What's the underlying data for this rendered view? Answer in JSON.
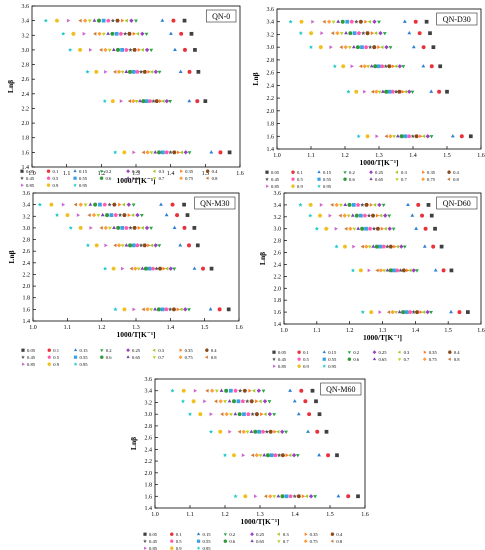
{
  "figure": {
    "series_labels": [
      "0.05",
      "0.1",
      "0.15",
      "0.2",
      "0.25",
      "0.3",
      "0.35",
      "0.4",
      "0.45",
      "0.5",
      "0.55",
      "0.6",
      "0.65",
      "0.7",
      "0.75",
      "0.8",
      "0.85",
      "0.9",
      "0.95"
    ],
    "marker_colors": [
      "#404040",
      "#e8313b",
      "#2a7fd4",
      "#27a844",
      "#9e3fbf",
      "#9cc82a",
      "#ff7a1a",
      "#8a4a1a",
      "#555555",
      "#ff5ab0",
      "#3aa0e8",
      "#2f9a3a",
      "#7a3fb0",
      "#b8d020",
      "#ff9e3a",
      "#cc7a3a",
      "#cc66cc",
      "#f0c020",
      "#20c8c8"
    ],
    "marker_shapes": [
      "square",
      "circle",
      "triangle-up",
      "triangle-down",
      "diamond",
      "triangle-left",
      "triangle-right",
      "hexagon",
      "star",
      "pentagon",
      "square",
      "circle",
      "triangle-up",
      "triangle-down",
      "diamond",
      "triangle-left",
      "triangle-right",
      "hexagon",
      "star"
    ]
  },
  "chart_data": [
    {
      "type": "scatter",
      "title": "QN-0",
      "xlabel": "1000/T[K⁻¹]",
      "ylabel": "Lnβ",
      "xlim": [
        1.0,
        1.6
      ],
      "ylim": [
        1.4,
        3.6
      ],
      "xticks": [
        "1.0",
        "1.1",
        "1.2",
        "1.3",
        "1.4",
        "1.5",
        "1.6"
      ],
      "yticks": [
        "1.4",
        "1.6",
        "1.8",
        "2.0",
        "2.2",
        "2.4",
        "2.6",
        "2.8",
        "3.0",
        "3.2",
        "3.4",
        "3.6"
      ],
      "legend_position": "bottom",
      "legend_labels": [
        "0.05",
        "0.1",
        "0.15",
        "0.2",
        "0.25",
        "0.3",
        "0.35",
        "0.4",
        "0.45",
        "0.5",
        "0.55",
        "0.6",
        "0.65",
        "0.7",
        "0.75",
        "0.8",
        "0.85",
        "0.9",
        "0.95"
      ],
      "y_levels": [
        3.4,
        3.22,
        3.0,
        2.7,
        2.3,
        1.6
      ],
      "x_ranges": [
        [
          1.04,
          1.44
        ],
        [
          1.09,
          1.46
        ],
        [
          1.11,
          1.47
        ],
        [
          1.16,
          1.48
        ],
        [
          1.21,
          1.5
        ],
        [
          1.24,
          1.57
        ]
      ]
    },
    {
      "type": "scatter",
      "title": "QN-D30",
      "xlabel": "1000/T[K⁻¹]",
      "ylabel": "Lnβ",
      "xlim": [
        1.0,
        1.6
      ],
      "ylim": [
        1.4,
        3.6
      ],
      "xticks": [
        "1.0",
        "1.1",
        "1.2",
        "1.3",
        "1.4",
        "1.5",
        "1.6"
      ],
      "yticks": [
        "1.4",
        "1.6",
        "1.8",
        "2.0",
        "2.2",
        "2.4",
        "2.6",
        "2.8",
        "3.0",
        "3.2",
        "3.4",
        "3.6"
      ],
      "legend_position": "bottom",
      "legend_labels": [
        "0.05",
        "0.1",
        "0.15",
        "0.2",
        "0.25",
        "0.3",
        "0.35",
        "0.4",
        "0.45",
        "0.5",
        "0.55",
        "0.6",
        "0.65",
        "0.7",
        "0.75",
        "0.8",
        "0.85",
        "0.9",
        "0.95"
      ],
      "y_levels": [
        3.4,
        3.22,
        3.0,
        2.7,
        2.3,
        1.6
      ],
      "x_ranges": [
        [
          1.04,
          1.44
        ],
        [
          1.07,
          1.45
        ],
        [
          1.1,
          1.46
        ],
        [
          1.17,
          1.48
        ],
        [
          1.21,
          1.5
        ],
        [
          1.24,
          1.57
        ]
      ]
    },
    {
      "type": "scatter",
      "title": "QN-M30",
      "xlabel": "1000/T[K⁻¹]",
      "ylabel": "Lnβ",
      "xlim": [
        1.0,
        1.6
      ],
      "ylim": [
        1.4,
        3.6
      ],
      "xticks": [
        "1.0",
        "1.1",
        "1.2",
        "1.3",
        "1.4",
        "1.5",
        "1.6"
      ],
      "yticks": [
        "1.4",
        "1.6",
        "1.8",
        "2.0",
        "2.2",
        "2.4",
        "2.6",
        "2.8",
        "3.0",
        "3.2",
        "3.4",
        "3.6"
      ],
      "legend_position": "bottom",
      "legend_labels": [
        "0.05",
        "0.1",
        "0.15",
        "0.2",
        "0.25",
        "0.3",
        "0.35",
        "0.4",
        "0.45",
        "0.5",
        "0.55",
        "0.6",
        "0.65",
        "0.7",
        "0.75",
        "0.8",
        "0.85",
        "0.9",
        "0.95"
      ],
      "y_levels": [
        3.4,
        3.22,
        3.0,
        2.7,
        2.3,
        1.6
      ],
      "x_ranges": [
        [
          1.02,
          1.44
        ],
        [
          1.07,
          1.45
        ],
        [
          1.11,
          1.47
        ],
        [
          1.16,
          1.48
        ],
        [
          1.21,
          1.52
        ],
        [
          1.24,
          1.57
        ]
      ]
    },
    {
      "type": "scatter",
      "title": "QN-D60",
      "xlabel": "1000/T[K⁻¹]",
      "ylabel": "Lnβ",
      "xlim": [
        1.0,
        1.6
      ],
      "ylim": [
        1.4,
        3.6
      ],
      "xticks": [
        "1.0",
        "1.1",
        "1.2",
        "1.3",
        "1.4",
        "1.5",
        "1.6"
      ],
      "yticks": [
        "1.4",
        "1.6",
        "1.8",
        "2.0",
        "2.2",
        "2.4",
        "2.6",
        "2.8",
        "3.0",
        "3.2",
        "3.4",
        "3.6"
      ],
      "legend_position": "bottom",
      "legend_labels": [
        "0.05",
        "0.1",
        "0.15",
        "0.2",
        "0.25",
        "0.3",
        "0.35",
        "0.4",
        "0.45",
        "0.5",
        "0.55",
        "0.6",
        "0.65",
        "0.7",
        "0.75",
        "0.8",
        "0.85",
        "0.9",
        "0.95"
      ],
      "y_levels": [
        3.4,
        3.22,
        3.0,
        2.7,
        2.3,
        1.6
      ],
      "x_ranges": [
        [
          1.05,
          1.44
        ],
        [
          1.08,
          1.45
        ],
        [
          1.1,
          1.46
        ],
        [
          1.16,
          1.48
        ],
        [
          1.21,
          1.51
        ],
        [
          1.24,
          1.56
        ]
      ]
    },
    {
      "type": "scatter",
      "title": "QN-M60",
      "xlabel": "1000/T[K⁻¹]",
      "ylabel": "Lnβ",
      "xlim": [
        1.0,
        1.6
      ],
      "ylim": [
        1.4,
        3.6
      ],
      "xticks": [
        "1.0",
        "1.1",
        "1.2",
        "1.3",
        "1.4",
        "1.5",
        "1.6"
      ],
      "yticks": [
        "1.4",
        "1.6",
        "1.8",
        "2.0",
        "2.2",
        "2.4",
        "2.6",
        "2.8",
        "3.0",
        "3.2",
        "3.4",
        "3.6"
      ],
      "legend_position": "bottom",
      "legend_labels": [
        "0.05",
        "0.1",
        "0.15",
        "0.2",
        "0.25",
        "0.3",
        "0.35",
        "0.4",
        "0.45",
        "0.5",
        "0.55",
        "0.6",
        "0.65",
        "0.7",
        "0.75",
        "0.8",
        "0.85",
        "0.9",
        "0.95"
      ],
      "y_levels": [
        3.4,
        3.22,
        3.0,
        2.7,
        2.3,
        1.6
      ],
      "x_ranges": [
        [
          1.05,
          1.45
        ],
        [
          1.08,
          1.46
        ],
        [
          1.1,
          1.47
        ],
        [
          1.16,
          1.49
        ],
        [
          1.2,
          1.52
        ],
        [
          1.23,
          1.58
        ]
      ]
    }
  ]
}
